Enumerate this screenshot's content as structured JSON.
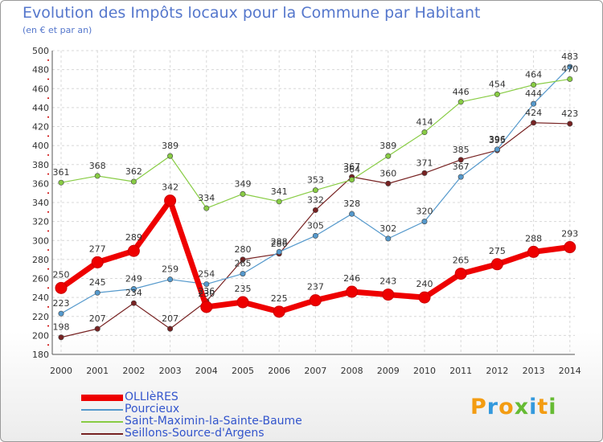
{
  "title": "Evolution des Impôts locaux pour la Commune par Habitant",
  "subtitle": "(en € et par an)",
  "logo_text": "Proxiti",
  "chart_data": {
    "type": "line",
    "title": "Evolution des Impôts locaux pour la Commune par Habitant",
    "subtitle": "(en € et par an)",
    "xlabel": "",
    "ylabel": "",
    "x": [
      2000,
      2001,
      2002,
      2003,
      2004,
      2005,
      2006,
      2007,
      2008,
      2009,
      2010,
      2011,
      2012,
      2013,
      2014
    ],
    "ylim": [
      180,
      500
    ],
    "yticks": [
      180,
      200,
      220,
      240,
      260,
      280,
      300,
      320,
      340,
      360,
      380,
      400,
      420,
      440,
      460,
      480,
      500
    ],
    "grid": true,
    "legend_position": "bottom",
    "series": [
      {
        "name": "OLLIèRES",
        "color": "#ee0000",
        "values": [
          250,
          277,
          289,
          342,
          230,
          235,
          225,
          237,
          246,
          243,
          240,
          265,
          275,
          288,
          293
        ]
      },
      {
        "name": "Pourcieux",
        "color": "#5599cc",
        "values": [
          223,
          245,
          249,
          259,
          254,
          265,
          288,
          305,
          328,
          302,
          320,
          367,
          396,
          444,
          483
        ]
      },
      {
        "name": "Saint-Maximin-la-Sainte-Baume",
        "color": "#88cc44",
        "values": [
          361,
          368,
          362,
          389,
          334,
          349,
          341,
          353,
          364,
          389,
          414,
          446,
          454,
          464,
          470
        ]
      },
      {
        "name": "Seillons-Source-d'Argens",
        "color": "#772222",
        "values": [
          198,
          207,
          234,
          207,
          236,
          280,
          286,
          332,
          367,
          360,
          371,
          385,
          395,
          424,
          423
        ]
      }
    ]
  }
}
